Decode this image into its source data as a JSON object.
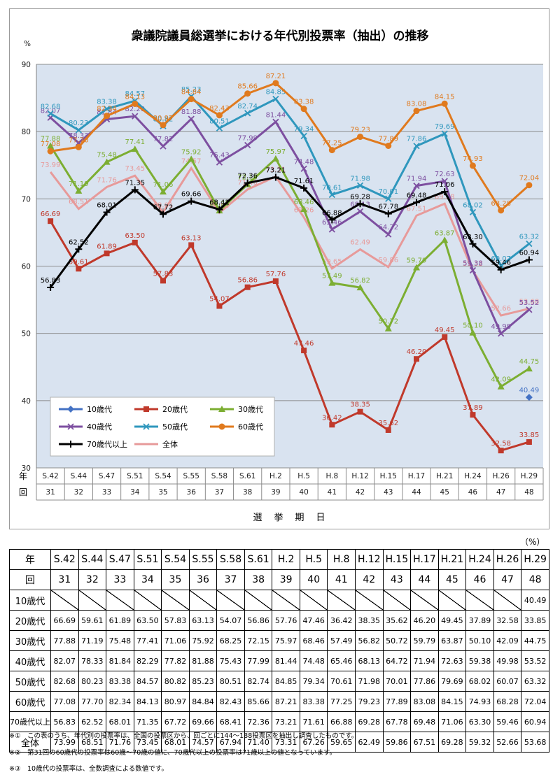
{
  "chart_data": {
    "type": "line",
    "title": "衆議院議員総選挙における年代別投票率（抽出）の推移",
    "yunit": "%",
    "ylim": [
      30,
      90
    ],
    "yticks": [
      30,
      40,
      50,
      60,
      70,
      80,
      90
    ],
    "grid": true,
    "legend_position": "bottom-left",
    "row_label_year": "年",
    "row_label_round": "回",
    "xlabel": "選　挙　期　日",
    "years": [
      "S.42",
      "S.44",
      "S.47",
      "S.51",
      "S.54",
      "S.55",
      "S.58",
      "S.61",
      "H.2",
      "H.5",
      "H.8",
      "H.12",
      "H.15",
      "H.17",
      "H.21",
      "H.24",
      "H.26",
      "H.29"
    ],
    "rounds": [
      "31",
      "32",
      "33",
      "34",
      "35",
      "36",
      "37",
      "38",
      "39",
      "40",
      "41",
      "42",
      "43",
      "44",
      "45",
      "46",
      "47",
      "48"
    ],
    "series": [
      {
        "name": "10歳代",
        "color": "#4472c4",
        "marker": "diamond",
        "values": [
          null,
          null,
          null,
          null,
          null,
          null,
          null,
          null,
          null,
          null,
          null,
          null,
          null,
          null,
          null,
          null,
          null,
          40.49
        ],
        "labels": [
          null,
          null,
          null,
          null,
          null,
          null,
          null,
          null,
          null,
          null,
          null,
          null,
          null,
          null,
          null,
          null,
          null,
          "40.49"
        ]
      },
      {
        "name": "20歳代",
        "color": "#c0392b",
        "marker": "square",
        "values": [
          66.69,
          59.61,
          61.89,
          63.5,
          57.83,
          63.13,
          54.07,
          56.86,
          57.76,
          47.46,
          36.42,
          38.35,
          35.62,
          46.2,
          49.45,
          37.89,
          32.58,
          33.85
        ],
        "labels": [
          "66.69",
          "59.61",
          "61.89",
          "63.50",
          "57.83",
          "63.13",
          "54.07",
          "56.86",
          "57.76",
          "47.46",
          "36.42",
          "38.35",
          "35.62",
          "46.20",
          "49.45",
          "37.89",
          "32.58",
          "33.85"
        ]
      },
      {
        "name": "30歳代",
        "color": "#7cae32",
        "marker": "triangle",
        "values": [
          77.88,
          71.19,
          75.48,
          77.41,
          71.06,
          75.92,
          68.25,
          72.15,
          75.97,
          68.46,
          57.49,
          56.82,
          50.72,
          59.79,
          63.87,
          50.1,
          42.09,
          44.75
        ],
        "labels": [
          "77.88",
          "71.19",
          "75.48",
          "77.41",
          "71.06",
          "75.92",
          "68.25",
          "72.15",
          "75.97",
          "68.46",
          "57.49",
          "56.82",
          "50.72",
          "59.79",
          "63.87",
          "50.10",
          "42.09",
          "44.75"
        ]
      },
      {
        "name": "40歳代",
        "color": "#7d4fa0",
        "marker": "x",
        "values": [
          82.07,
          78.33,
          81.84,
          82.29,
          77.82,
          81.88,
          75.43,
          77.99,
          81.44,
          74.48,
          65.46,
          68.13,
          64.72,
          71.94,
          72.63,
          59.38,
          49.98,
          53.52
        ],
        "labels": [
          "82.07",
          "78.33",
          "81.84",
          "82.29",
          "77.82",
          "81.88",
          "75.43",
          "77.99",
          "81.44",
          "74.48",
          "65.46",
          "68.13",
          "64.72",
          "71.94",
          "72.63",
          "59.38",
          "49.98",
          "53.52"
        ]
      },
      {
        "name": "50歳代",
        "color": "#2f97bd",
        "marker": "x",
        "values": [
          82.68,
          80.23,
          83.38,
          84.57,
          80.82,
          85.23,
          80.51,
          82.74,
          84.85,
          79.34,
          70.61,
          71.98,
          70.01,
          77.86,
          79.69,
          68.02,
          60.07,
          63.32
        ],
        "labels": [
          "82.68",
          "80.23",
          "83.38",
          "84.57",
          "80.82",
          "85.23",
          "80.51",
          "82.74",
          "84.85",
          "79.34",
          "70.61",
          "71.98",
          "70.01",
          "77.86",
          "79.69",
          "68.02",
          "60.07",
          "63.32"
        ]
      },
      {
        "name": "60歳代",
        "color": "#e07a1e",
        "marker": "circle",
        "values": [
          77.08,
          77.7,
          82.34,
          84.13,
          80.97,
          84.84,
          82.43,
          85.66,
          87.21,
          83.38,
          77.25,
          79.23,
          77.89,
          83.08,
          84.15,
          74.93,
          68.28,
          72.04
        ],
        "labels": [
          "77.08",
          "77.70",
          "82.34",
          "84.13",
          "80.97",
          "84.84",
          "82.43",
          "85.66",
          "87.21",
          "83.38",
          "77.25",
          "79.23",
          "77.89",
          "83.08",
          "84.15",
          "74.93",
          "68.28",
          "72.04"
        ]
      },
      {
        "name": "70歳代以上",
        "color": "#000000",
        "marker": "plus",
        "values": [
          56.83,
          62.52,
          68.01,
          71.35,
          67.72,
          69.66,
          68.41,
          72.36,
          73.21,
          71.61,
          66.88,
          69.28,
          67.78,
          69.48,
          71.06,
          63.3,
          59.46,
          60.94
        ],
        "labels": [
          "56.83",
          "62.52",
          "68.01",
          "71.35",
          "67.72",
          "69.66",
          "68.41",
          "72.36",
          "73.21",
          "71.61",
          "66.88",
          "69.28",
          "67.78",
          "69.48",
          "71.06",
          "63.30",
          "59.46",
          "60.94"
        ]
      },
      {
        "name": "全体",
        "color": "#e79a9a",
        "marker": "none",
        "values": [
          73.99,
          68.51,
          71.76,
          73.45,
          68.01,
          74.57,
          67.94,
          71.4,
          73.31,
          67.26,
          59.65,
          62.49,
          59.86,
          67.51,
          69.28,
          59.32,
          52.66,
          53.68
        ],
        "labels": [
          "73.99",
          "68.51",
          "71.76",
          "73.45",
          "68.01",
          "74.57",
          "67.94",
          "71.40",
          "73.31",
          "67.26",
          "59.65",
          "62.49",
          "59.86",
          "67.51",
          "69.28",
          "59.32",
          "52.66",
          "53.68"
        ]
      }
    ]
  },
  "table": {
    "unit": "（%）",
    "year_label": "年",
    "round_label": "回",
    "rows": [
      {
        "label": "10歳代",
        "cells": [
          "",
          "",
          "",
          "",
          "",
          "",
          "",
          "",
          "",
          "",
          "",
          "",
          "",
          "",
          "",
          "",
          "",
          "40.49"
        ],
        "blank": true
      },
      {
        "label": "20歳代",
        "cells": [
          "66.69",
          "59.61",
          "61.89",
          "63.50",
          "57.83",
          "63.13",
          "54.07",
          "56.86",
          "57.76",
          "47.46",
          "36.42",
          "38.35",
          "35.62",
          "46.20",
          "49.45",
          "37.89",
          "32.58",
          "33.85"
        ]
      },
      {
        "label": "30歳代",
        "cells": [
          "77.88",
          "71.19",
          "75.48",
          "77.41",
          "71.06",
          "75.92",
          "68.25",
          "72.15",
          "75.97",
          "68.46",
          "57.49",
          "56.82",
          "50.72",
          "59.79",
          "63.87",
          "50.10",
          "42.09",
          "44.75"
        ]
      },
      {
        "label": "40歳代",
        "cells": [
          "82.07",
          "78.33",
          "81.84",
          "82.29",
          "77.82",
          "81.88",
          "75.43",
          "77.99",
          "81.44",
          "74.48",
          "65.46",
          "68.13",
          "64.72",
          "71.94",
          "72.63",
          "59.38",
          "49.98",
          "53.52"
        ]
      },
      {
        "label": "50歳代",
        "cells": [
          "82.68",
          "80.23",
          "83.38",
          "84.57",
          "80.82",
          "85.23",
          "80.51",
          "82.74",
          "84.85",
          "79.34",
          "70.61",
          "71.98",
          "70.01",
          "77.86",
          "79.69",
          "68.02",
          "60.07",
          "63.32"
        ]
      },
      {
        "label": "60歳代",
        "cells": [
          "77.08",
          "77.70",
          "82.34",
          "84.13",
          "80.97",
          "84.84",
          "82.43",
          "85.66",
          "87.21",
          "83.38",
          "77.25",
          "79.23",
          "77.89",
          "83.08",
          "84.15",
          "74.93",
          "68.28",
          "72.04"
        ]
      },
      {
        "label": "70歳代以上",
        "cells": [
          "56.83",
          "62.52",
          "68.01",
          "71.35",
          "67.72",
          "69.66",
          "68.41",
          "72.36",
          "73.21",
          "71.61",
          "66.88",
          "69.28",
          "67.78",
          "69.48",
          "71.06",
          "63.30",
          "59.46",
          "60.94"
        ],
        "small": true
      },
      {
        "label": "全体",
        "cells": [
          "73.99",
          "68.51",
          "71.76",
          "73.45",
          "68.01",
          "74.57",
          "67.94",
          "71.40",
          "73.31",
          "67.26",
          "59.65",
          "62.49",
          "59.86",
          "67.51",
          "69.28",
          "59.32",
          "52.66",
          "53.68"
        ]
      }
    ]
  },
  "notes": [
    "※①　この表のうち、年代別の投票率は、全国の投票区から、回ごとに144～188投票区を抽出し調査したものです。",
    "※②　第31回の60歳代の投票率は60歳～70歳の値に、70歳代以上の投票率は71歳以上の値となっています。",
    "※③　10歳代の投票率は、全数調査による数値です。"
  ]
}
